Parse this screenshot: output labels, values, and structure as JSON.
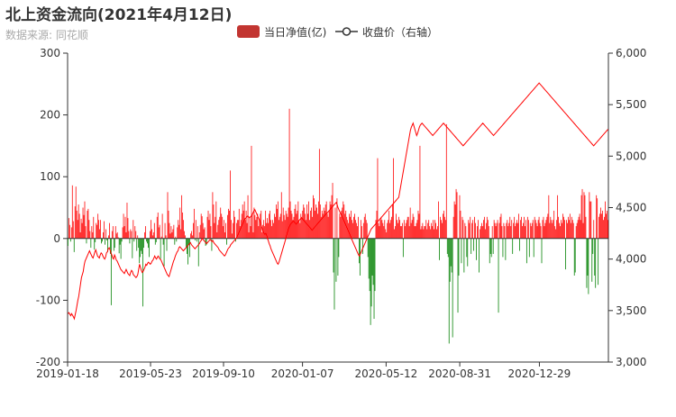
{
  "header": {
    "title": "北上资金流向(2021年4月12日)",
    "subtitle": "数据来源: 同花顺"
  },
  "chart_data": {
    "type": "bar+line",
    "legend": {
      "position": "top-center",
      "items": [
        {
          "label": "当日净值(亿)",
          "kind": "bar",
          "color": "#c23531"
        },
        {
          "label": "收盘价（右轴）",
          "kind": "line",
          "color": "#333333"
        }
      ]
    },
    "x_axis": {
      "type": "date",
      "range": [
        "2019-01-18",
        "2021-04-12"
      ],
      "tick_labels": [
        "2019-01-18",
        "2019-05-23",
        "2019-09-10",
        "2020-01-07",
        "2020-05-12",
        "2020-08-31",
        "2020-12-29"
      ]
    },
    "y_left": {
      "range": [
        -200,
        300
      ],
      "ticks": [
        -200,
        -100,
        0,
        100,
        200,
        300
      ]
    },
    "y_right": {
      "range": [
        3000,
        6000
      ],
      "ticks": [
        "3,000",
        "3,500",
        "4,000",
        "4,500",
        "5,000",
        "5,500",
        "6,000"
      ]
    },
    "grid": false,
    "colors": {
      "positive": "#ff0000",
      "negative": "#008000",
      "line": "#ff0000"
    },
    "notes_source": "daily values estimated from chart",
    "bar_series": {
      "name": "当日净值(亿)",
      "values": [
        -12,
        33,
        22,
        -5,
        18,
        86,
        28,
        -22,
        52,
        84,
        45,
        30,
        55,
        40,
        10,
        32,
        25,
        50,
        38,
        60,
        20,
        -8,
        45,
        48,
        30,
        12,
        -15,
        20,
        10,
        35,
        -18,
        -6,
        25,
        22,
        40,
        30,
        15,
        30,
        -8,
        -5,
        10,
        28,
        -10,
        15,
        -3,
        -22,
        5,
        25,
        -25,
        -108,
        12,
        20,
        -20,
        -15,
        20,
        8,
        10,
        2,
        -24,
        -10,
        -33,
        -5,
        18,
        40,
        20,
        35,
        10,
        58,
        33,
        12,
        -8,
        15,
        12,
        -32,
        30,
        -5,
        20,
        12,
        -20,
        5,
        -15,
        -40,
        -30,
        -20,
        -25,
        -110,
        -15,
        10,
        20,
        -5,
        -8,
        -15,
        -30,
        12,
        30,
        15,
        5,
        10,
        25,
        -10,
        -6,
        35,
        42,
        18,
        22,
        -33,
        3,
        40,
        -10,
        -45,
        25,
        5,
        -20,
        75,
        45,
        25,
        8,
        20,
        10,
        15,
        22,
        -10,
        3,
        -5,
        18,
        30,
        22,
        50,
        15,
        70,
        42,
        30,
        12,
        5,
        -15,
        -25,
        -42,
        -10,
        -30,
        8,
        12,
        5,
        25,
        48,
        -3,
        30,
        -5,
        20,
        -45,
        10,
        22,
        40,
        36,
        25,
        15,
        18,
        -12,
        -10,
        35,
        45,
        30,
        40,
        20,
        -20,
        75,
        55,
        25,
        35,
        60,
        10,
        22,
        30,
        35,
        50,
        40,
        35,
        20,
        30,
        10,
        25,
        -10,
        38,
        48,
        45,
        110,
        30,
        8,
        25,
        45,
        35,
        -5,
        25,
        30,
        30,
        48,
        20,
        30,
        40,
        55,
        45,
        60,
        30,
        45,
        25,
        70,
        10,
        35,
        20,
        150,
        40,
        10,
        50,
        38,
        30,
        35,
        40,
        20,
        30,
        40,
        45,
        10,
        22,
        30,
        20,
        45,
        25,
        33,
        25,
        40,
        45,
        30,
        20,
        30,
        25,
        40,
        35,
        55,
        48,
        60,
        30,
        35,
        40,
        75,
        28,
        50,
        38,
        30,
        45,
        40,
        35,
        50,
        210,
        60,
        45,
        40,
        30,
        35,
        48,
        55,
        40,
        45,
        60,
        30,
        25,
        40,
        35,
        45,
        55,
        50,
        40,
        30,
        55,
        40,
        60,
        30,
        45,
        50,
        35,
        70,
        65,
        45,
        55,
        50,
        40,
        60,
        145,
        55,
        35,
        45,
        40,
        50,
        45,
        55,
        60,
        40,
        35,
        45,
        60,
        55,
        70,
        90,
        -55,
        -115,
        50,
        -70,
        65,
        -60,
        -30,
        40,
        35,
        45,
        50,
        60,
        55,
        40,
        45,
        35,
        30,
        25,
        40,
        35,
        45,
        30,
        25,
        35,
        40,
        30,
        25,
        20,
        35,
        -40,
        -60,
        30,
        20,
        -25,
        25,
        35,
        40,
        30,
        25,
        -30,
        -65,
        -85,
        -140,
        -110,
        -60,
        -75,
        -130,
        -85,
        30,
        45,
        130,
        25,
        20,
        30,
        35,
        30,
        25,
        20,
        30,
        15,
        10,
        25,
        30,
        45,
        25,
        30,
        35,
        55,
        130,
        15,
        20,
        40,
        30,
        25,
        35,
        30,
        20,
        20,
        25,
        -30,
        30,
        20,
        25,
        30,
        35,
        35,
        20,
        50,
        25,
        30,
        40,
        35,
        20,
        20,
        25,
        30,
        45,
        40,
        150,
        15,
        20,
        25,
        15,
        20,
        20,
        30,
        15,
        25,
        30,
        20,
        15,
        25,
        20,
        30,
        15,
        30,
        25,
        15,
        20,
        60,
        -35,
        35,
        30,
        25,
        40,
        45,
        35,
        30,
        185,
        -25,
        -30,
        -170,
        -70,
        -45,
        -55,
        -160,
        35,
        60,
        55,
        80,
        75,
        -120,
        -60,
        70,
        45,
        -40,
        35,
        30,
        -55,
        25,
        20,
        -30,
        -45,
        30,
        25,
        35,
        -25,
        25,
        30,
        -20,
        35,
        25,
        -35,
        20,
        30,
        -55,
        15,
        20,
        25,
        20,
        30,
        35,
        15,
        25,
        35,
        30,
        20,
        -40,
        -25,
        -30,
        20,
        -25,
        30,
        25,
        20,
        25,
        30,
        -120,
        25,
        35,
        40,
        20,
        -30,
        25,
        20,
        -35,
        25,
        30,
        20,
        25,
        35,
        20,
        30,
        -25,
        25,
        35,
        20,
        25,
        30,
        25,
        40,
        -20,
        30,
        35,
        20,
        25,
        35,
        20,
        30,
        -40,
        35,
        30,
        -30,
        25,
        20,
        25,
        30,
        -30,
        35,
        30,
        25,
        20,
        30,
        35,
        25,
        20,
        -40,
        30,
        35,
        20,
        25,
        30,
        35,
        40,
        70,
        25,
        35,
        30,
        25,
        30,
        45,
        20,
        15,
        30,
        70,
        35,
        25,
        20,
        30,
        25,
        40,
        35,
        30,
        -50,
        30,
        25,
        35,
        30,
        40,
        25,
        35,
        30,
        25,
        -60,
        -55,
        20,
        25,
        30,
        35,
        40,
        30,
        70,
        80,
        25,
        75,
        70,
        35,
        -80,
        -60,
        -90,
        75,
        60,
        60,
        -70,
        -25,
        30,
        -60,
        -80,
        70,
        65,
        -75,
        35,
        40,
        50,
        40,
        45,
        30,
        35,
        60,
        40,
        45,
        30
      ]
    },
    "line_series": {
      "name": "收盘价（右轴）",
      "axis": "right",
      "values": [
        3470,
        3480,
        3465,
        3450,
        3470,
        3455,
        3440,
        3420,
        3460,
        3500,
        3550,
        3600,
        3640,
        3700,
        3760,
        3820,
        3850,
        3880,
        3940,
        3980,
        4000,
        4020,
        4040,
        4060,
        4080,
        4060,
        4040,
        4020,
        4010,
        4040,
        4070,
        4090,
        4060,
        4030,
        4020,
        4010,
        4040,
        4060,
        4050,
        4030,
        4010,
        4000,
        4020,
        4060,
        4070,
        4100,
        4110,
        4090,
        4060,
        4040,
        4010,
        4000,
        4040,
        4020,
        3990,
        3980,
        3960,
        3940,
        3920,
        3900,
        3890,
        3880,
        3870,
        3860,
        3880,
        3900,
        3880,
        3860,
        3850,
        3840,
        3870,
        3890,
        3880,
        3850,
        3840,
        3830,
        3820,
        3830,
        3850,
        3900,
        3950,
        3920,
        3890,
        3870,
        3880,
        3900,
        3920,
        3950,
        3940,
        3960,
        3970,
        3960,
        3950,
        3960,
        3980,
        3990,
        4010,
        4030,
        4010,
        4000,
        4020,
        4030,
        4010,
        4000,
        3990,
        3970,
        3950,
        3930,
        3910,
        3890,
        3870,
        3850,
        3840,
        3830,
        3860,
        3890,
        3920,
        3950,
        3980,
        4000,
        4030,
        4050,
        4070,
        4080,
        4110,
        4120,
        4110,
        4100,
        4090,
        4080,
        4090,
        4100,
        4110,
        4120,
        4130,
        4140,
        4150,
        4160,
        4140,
        4130,
        4120,
        4110,
        4100,
        4110,
        4120,
        4130,
        4140,
        4150,
        4170,
        4180,
        4200,
        4190,
        4180,
        4170,
        4160,
        4150,
        4160,
        4170,
        4180,
        4190,
        4180,
        4170,
        4180,
        4160,
        4150,
        4140,
        4130,
        4120,
        4110,
        4090,
        4080,
        4070,
        4060,
        4050,
        4040,
        4030,
        4040,
        4060,
        4080,
        4100,
        4110,
        4120,
        4140,
        4150,
        4160,
        4170,
        4180,
        4190,
        4200,
        4210,
        4230,
        4250,
        4270,
        4290,
        4310,
        4330,
        4350,
        4370,
        4390,
        4400,
        4410,
        4420,
        4410,
        4400,
        4410,
        4420,
        4430,
        4450,
        4470,
        4480,
        4460,
        4440,
        4420,
        4400,
        4380,
        4360,
        4330,
        4300,
        4270,
        4250,
        4240,
        4250,
        4230,
        4200,
        4180,
        4150,
        4130,
        4100,
        4080,
        4060,
        4040,
        4020,
        4000,
        3980,
        3960,
        3950,
        3970,
        4000,
        4030,
        4060,
        4090,
        4120,
        4150,
        4180,
        4210,
        4240,
        4270,
        4300,
        4320,
        4340,
        4350,
        4360,
        4370,
        4360,
        4350,
        4340,
        4350,
        4360,
        4370,
        4380,
        4390,
        4400,
        4390,
        4380,
        4370,
        4360,
        4350,
        4340,
        4330,
        4320,
        4310,
        4300,
        4290,
        4280,
        4290,
        4300,
        4310,
        4320,
        4330,
        4340,
        4350,
        4360,
        4370,
        4380,
        4390,
        4400,
        4410,
        4420,
        4430,
        4440,
        4450,
        4460,
        4470,
        4480,
        4490,
        4500,
        4510,
        4520,
        4530,
        4540,
        4550,
        4530,
        4500,
        4480,
        4460,
        4440,
        4420,
        4400,
        4380,
        4360,
        4340,
        4320,
        4300,
        4280,
        4260,
        4240,
        4220,
        4200,
        4180,
        4160,
        4140,
        4120,
        4100,
        4080,
        4060,
        4040,
        4030,
        4050,
        4070,
        4090,
        4110,
        4130,
        4150,
        4170,
        4190,
        4210,
        4230,
        4250,
        4270,
        4290,
        4300,
        4310,
        4320,
        4330,
        4340,
        4350,
        4360,
        4370,
        4380,
        4390,
        4400,
        4410,
        4420,
        4430,
        4440,
        4450,
        4460,
        4470,
        4480,
        4490,
        4500,
        4510,
        4520,
        4530,
        4540,
        4550,
        4560,
        4570,
        4580,
        4590,
        4600,
        4650,
        4700,
        4750,
        4800,
        4850,
        4900,
        4950,
        5000,
        5050,
        5100,
        5150,
        5200,
        5250,
        5280,
        5300,
        5320,
        5290,
        5260,
        5230,
        5200,
        5220,
        5250,
        5280,
        5300,
        5310,
        5320,
        5310,
        5300,
        5290,
        5280,
        5270,
        5260,
        5250,
        5240,
        5230,
        5220,
        5210,
        5200,
        5210,
        5220,
        5230,
        5240,
        5250,
        5260,
        5270,
        5280,
        5290,
        5300,
        5310,
        5320,
        5310,
        5300,
        5290,
        5280,
        5270,
        5260,
        5250,
        5240,
        5230,
        5220,
        5210,
        5200,
        5190,
        5180,
        5170,
        5160,
        5150,
        5140,
        5130,
        5120,
        5110,
        5100,
        5110,
        5120,
        5130,
        5140,
        5150,
        5160,
        5170,
        5180,
        5190,
        5200,
        5210,
        5220,
        5230,
        5240,
        5250,
        5260,
        5270,
        5280,
        5290,
        5300,
        5310,
        5320,
        5310,
        5300,
        5290,
        5280,
        5270,
        5260,
        5250,
        5240,
        5230,
        5220,
        5210,
        5200,
        5210,
        5220,
        5230,
        5240,
        5250,
        5260,
        5270,
        5280,
        5290,
        5300,
        5310,
        5320,
        5330,
        5340,
        5350,
        5360,
        5370,
        5380,
        5390,
        5400,
        5410,
        5420,
        5430,
        5440,
        5450,
        5460,
        5470,
        5480,
        5490,
        5500,
        5510,
        5520,
        5530,
        5540,
        5550,
        5560,
        5570,
        5580,
        5590,
        5600,
        5610,
        5620,
        5630,
        5640,
        5650,
        5660,
        5670,
        5680,
        5690,
        5700,
        5710,
        5700,
        5690,
        5680,
        5670,
        5660,
        5650,
        5640,
        5630,
        5620,
        5610,
        5600,
        5590,
        5580,
        5570,
        5560,
        5550,
        5540,
        5530,
        5520,
        5510,
        5500,
        5490,
        5480,
        5470,
        5460,
        5450,
        5440,
        5430,
        5420,
        5410,
        5400,
        5390,
        5380,
        5370,
        5360,
        5350,
        5340,
        5330,
        5320,
        5310,
        5300,
        5290,
        5280,
        5270,
        5260,
        5250,
        5240,
        5230,
        5220,
        5210,
        5200,
        5190,
        5180,
        5170,
        5160,
        5150,
        5140,
        5130,
        5120,
        5110,
        5100,
        5110,
        5120,
        5130,
        5140,
        5150,
        5160,
        5170,
        5180,
        5190,
        5200,
        5210,
        5220,
        5230,
        5240,
        5250,
        5260
      ]
    }
  }
}
